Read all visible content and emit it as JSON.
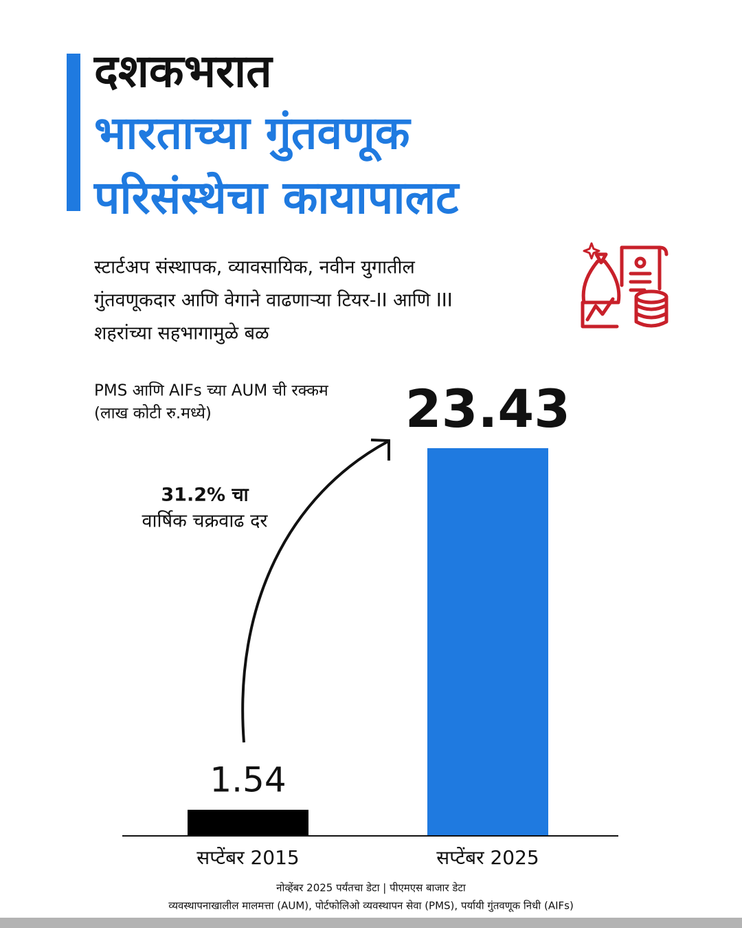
{
  "chart_data": {
    "type": "bar",
    "title": [
      "दशकभरात",
      "भारताच्या गुंतवणूक",
      "परिसंस्थेचा कायापालट"
    ],
    "subtitle": [
      "स्टार्टअप संस्थापक, व्यावसायिक, नवीन युगातील",
      "गुंतवणूकदार आणि वेगाने वाढणाऱ्या टियर-II आणि III",
      "शहरांच्या सहभागामुळे बळ"
    ],
    "y_label": [
      "PMS आणि AIFs च्या AUM ची रक्कम",
      "(लाख कोटी रु.मध्ये)"
    ],
    "annotation": [
      "31.2% चा",
      "वार्षिक चक्रवाढ दर"
    ],
    "categories": [
      "सप्टेंबर 2015",
      "सप्टेंबर 2025"
    ],
    "values": [
      1.54,
      23.43
    ],
    "colors": [
      "#000000",
      "#1f7ae0"
    ],
    "footer": [
      "नोव्हेंबर 2025 पर्यंतचा डेटा | पीएमएस बाजार डेटा",
      "व्यवस्थापनाखालील मालमत्ता (AUM), पोर्टफोलिओ व्यवस्थापन सेवा (PMS), पर्यायी गुंतवणूक निधी (AIFs)"
    ]
  }
}
